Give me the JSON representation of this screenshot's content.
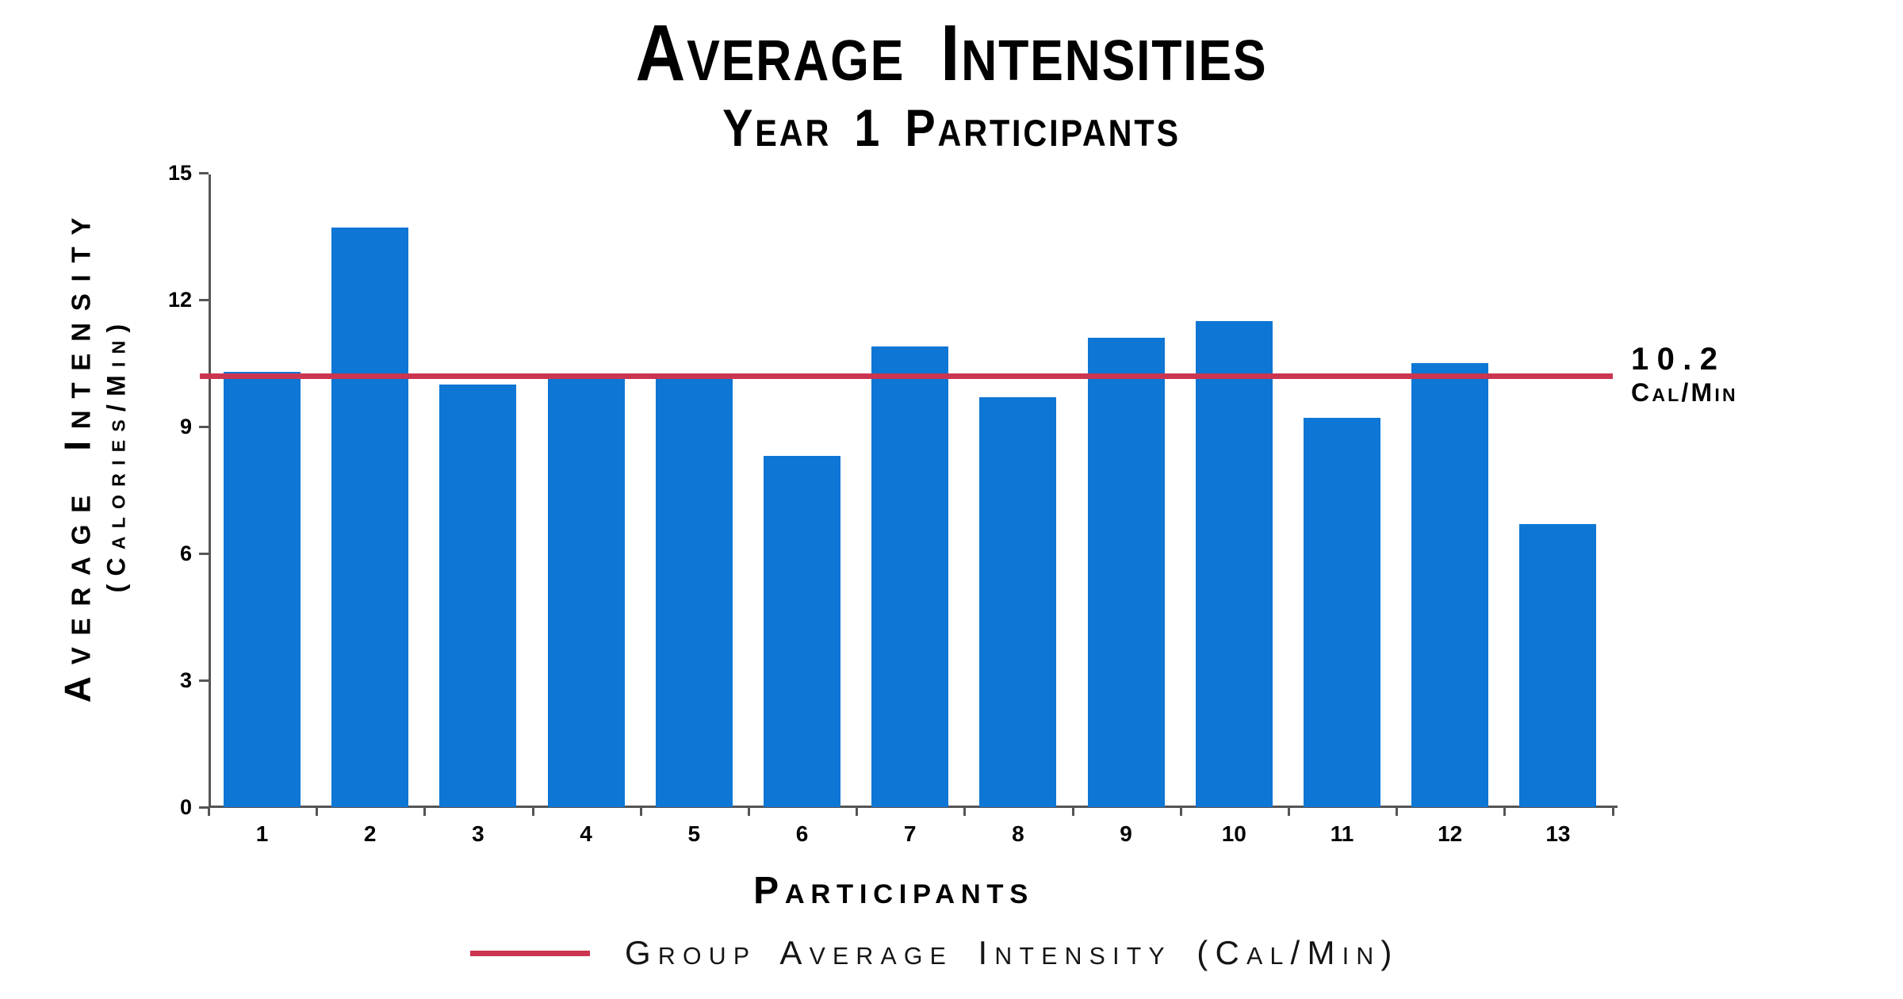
{
  "header": {
    "title": "Average Intensities",
    "subtitle": "Year 1 Participants"
  },
  "chart_data": {
    "type": "bar",
    "title": "Average Intensities",
    "subtitle": "Year 1 Participants",
    "categories": [
      "1",
      "2",
      "3",
      "4",
      "5",
      "6",
      "7",
      "8",
      "9",
      "10",
      "11",
      "12",
      "13"
    ],
    "values": [
      10.3,
      13.7,
      10.0,
      10.2,
      10.2,
      8.3,
      10.9,
      9.7,
      11.1,
      11.5,
      9.2,
      10.5,
      6.7
    ],
    "xlabel": "Participants",
    "ylabel_line1": "Average Intensity",
    "ylabel_line2": "(Calories/Min)",
    "yticks": [
      0,
      3,
      6,
      9,
      12,
      15
    ],
    "ylim": [
      0,
      15
    ],
    "grid": false,
    "average_line": {
      "value": 10.2,
      "annotation_line1": "10.2",
      "annotation_line2": "Cal/min"
    },
    "legend": {
      "position": "bottom",
      "entries": [
        {
          "type": "line",
          "label": "Group Average Intensity (Cal/min)"
        }
      ]
    },
    "colors": {
      "bar": "#0e76d4",
      "average_line": "#cb3550",
      "axis": "#555555",
      "text": "#000000"
    }
  }
}
